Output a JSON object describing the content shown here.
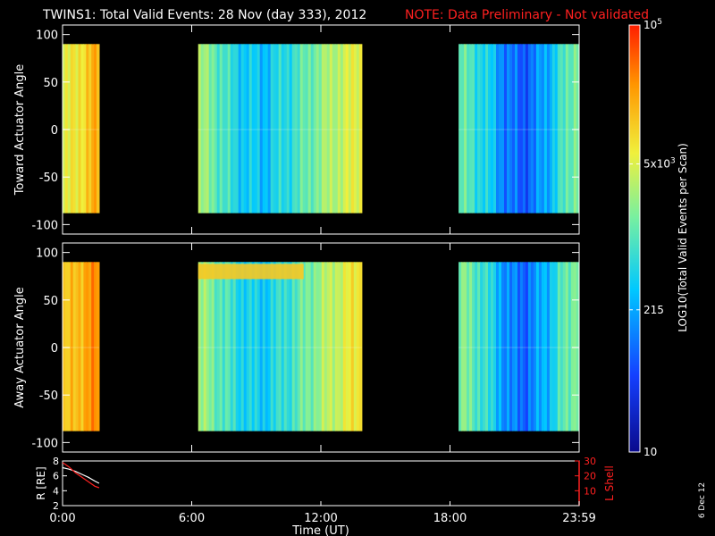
{
  "header": {
    "title": "TWINS1: Total Valid Events: 28 Nov (day 333), 2012",
    "note": "NOTE: Data Preliminary - Not validated"
  },
  "date_stamp": "6 Dec 12",
  "colors": {
    "background": "#000000",
    "note": "#ff2020",
    "l_shell_axis": "#ff2020",
    "r_trace": "#ffffff",
    "l_trace": "#ff2020"
  },
  "chart_data": [
    {
      "type": "heatmap",
      "name": "toward-panel",
      "title": "",
      "xlabel": "",
      "ylabel": "Toward Actuator Angle",
      "xlim": [
        0,
        24
      ],
      "ylim": [
        -110,
        110
      ],
      "y_ticks": [
        100,
        50,
        0,
        -50,
        -100
      ],
      "y_tick_labels": [
        "100",
        "50",
        "0",
        "-50",
        "-100"
      ],
      "x_ticks": [
        0,
        6,
        12,
        18,
        24
      ],
      "angle_range": [
        -88,
        90
      ],
      "data_intervals_hours": [
        [
          0.0,
          1.7
        ],
        [
          6.3,
          13.9
        ],
        [
          18.4,
          23.99
        ]
      ],
      "profile_hours": [
        0.0,
        0.6,
        1.2,
        1.7,
        6.3,
        6.8,
        7.4,
        8.0,
        8.6,
        9.2,
        9.8,
        10.4,
        11.0,
        11.6,
        12.2,
        12.8,
        13.4,
        13.9,
        18.4,
        19.0,
        19.6,
        20.2,
        20.8,
        21.4,
        22.0,
        22.6,
        23.2,
        23.99
      ],
      "profile_levels": [
        0.62,
        0.68,
        0.74,
        0.8,
        0.56,
        0.52,
        0.45,
        0.38,
        0.35,
        0.33,
        0.36,
        0.4,
        0.44,
        0.5,
        0.55,
        0.6,
        0.63,
        0.66,
        0.48,
        0.44,
        0.38,
        0.3,
        0.22,
        0.2,
        0.24,
        0.32,
        0.42,
        0.55
      ]
    },
    {
      "type": "heatmap",
      "name": "away-panel",
      "title": "",
      "xlabel": "Time (UT)",
      "ylabel": "Away Actuator Angle",
      "xlim": [
        0,
        24
      ],
      "ylim": [
        -110,
        110
      ],
      "y_ticks": [
        100,
        50,
        0,
        -50,
        -100
      ],
      "y_tick_labels": [
        "100",
        "50",
        "0",
        "-50",
        "-100"
      ],
      "x_ticks": [
        0,
        6,
        12,
        18,
        24
      ],
      "angle_range": [
        -88,
        90
      ],
      "data_intervals_hours": [
        [
          0.0,
          1.7
        ],
        [
          6.3,
          13.9
        ],
        [
          18.4,
          23.99
        ]
      ],
      "profile_hours": [
        0.0,
        0.6,
        1.2,
        1.7,
        6.3,
        6.8,
        7.4,
        8.0,
        8.6,
        9.2,
        9.8,
        10.4,
        11.0,
        11.6,
        12.2,
        12.8,
        13.4,
        13.9,
        18.4,
        19.0,
        19.6,
        20.2,
        20.8,
        21.4,
        22.0,
        22.6,
        23.2,
        23.99
      ],
      "profile_levels": [
        0.7,
        0.76,
        0.82,
        0.84,
        0.56,
        0.52,
        0.46,
        0.4,
        0.37,
        0.35,
        0.38,
        0.42,
        0.46,
        0.52,
        0.57,
        0.62,
        0.66,
        0.7,
        0.52,
        0.48,
        0.42,
        0.33,
        0.24,
        0.22,
        0.26,
        0.34,
        0.44,
        0.56
      ],
      "bright_band_angle": [
        72,
        88
      ],
      "bright_band_hours": [
        6.3,
        11.2
      ]
    },
    {
      "type": "line",
      "name": "ephemeris-panel",
      "title": "",
      "xlabel": "Time (UT)",
      "ylabel": "R [RE]",
      "ylabel_right": "L Shell",
      "ylim": [
        2,
        8
      ],
      "ylim_right": [
        0,
        30
      ],
      "y_ticks": [
        2,
        4,
        6,
        8
      ],
      "y_ticks_right": [
        10,
        20,
        30
      ],
      "x_tick_labels": [
        "0:00",
        "6:00",
        "12:00",
        "18:00",
        "23:59"
      ],
      "series": [
        {
          "name": "R",
          "axis": "left",
          "x": [
            0.0,
            0.3,
            0.6,
            0.9,
            1.2,
            1.5,
            1.7
          ],
          "y": [
            7.1,
            6.9,
            6.6,
            6.2,
            5.8,
            5.3,
            5.0
          ]
        },
        {
          "name": "L",
          "axis": "right",
          "x": [
            0.0,
            0.3,
            0.6,
            0.9,
            1.2,
            1.5,
            1.7
          ],
          "y": [
            29,
            26,
            22,
            19,
            16,
            13,
            12
          ]
        }
      ]
    }
  ],
  "colorbar": {
    "label": "LOG10(Total Valid Events per Scan)",
    "scale": "log",
    "range": [
      10,
      100000
    ],
    "tick_values": [
      100000,
      5000,
      215,
      10
    ],
    "tick_labels": [
      "10^5",
      "5x10^3",
      "215",
      "10"
    ],
    "colors": [
      "#0a0a8c",
      "#1440ff",
      "#00c8ff",
      "#78f0a0",
      "#f0f03c",
      "#ff9600",
      "#ff1e00"
    ]
  }
}
